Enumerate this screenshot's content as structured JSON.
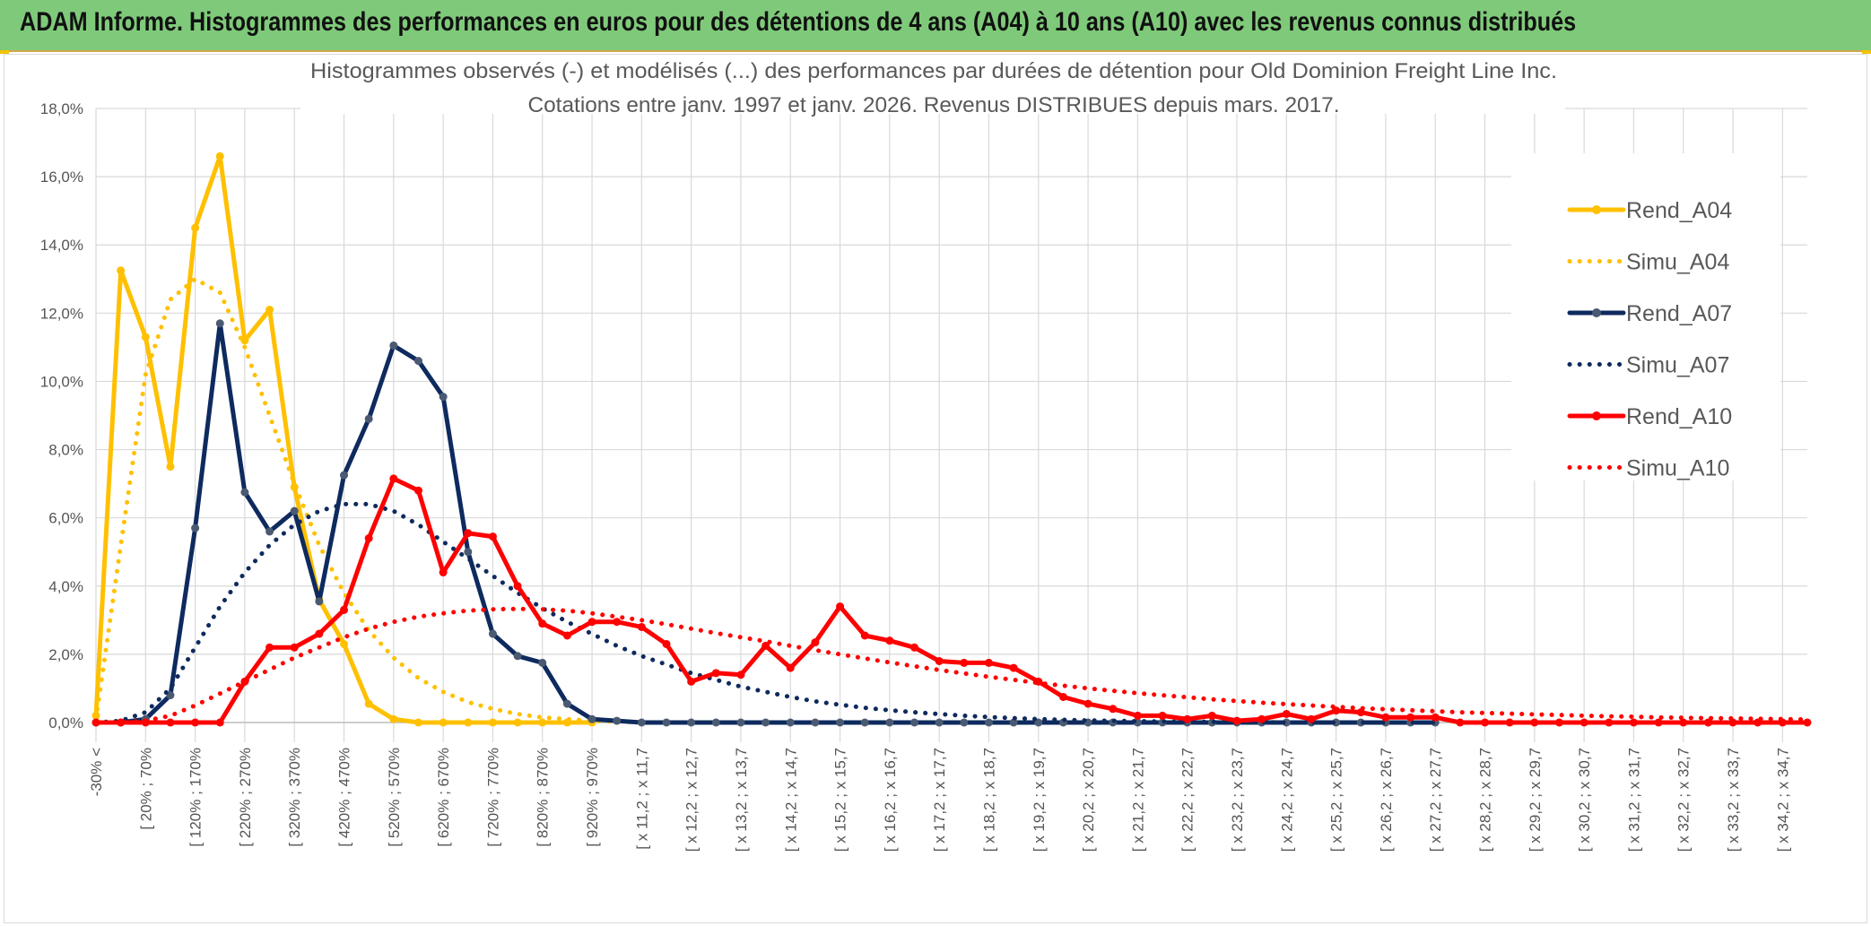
{
  "banner": {
    "title": "ADAM Informe. Histogrammes des performances en euros pour des détentions de 4 ans (A04) à 10 ans (A10) avec les revenus connus distribués"
  },
  "colors": {
    "banner_bg": "#7fca7a",
    "a04": "#ffc000",
    "a07": "#0e2a5e",
    "a07_marker": "#4a5a72",
    "a10": "#ff0000",
    "grid": "#d9d9d9"
  },
  "chart_data": {
    "type": "line",
    "title": "Histogrammes observés (-) et modélisés (...) des performances par durées de détention pour Old Dominion Freight Line Inc.",
    "subtitle": "Cotations entre janv. 1997 et janv. 2026. Revenus DISTRIBUES depuis mars. 2017.",
    "xlabel": "",
    "ylabel": "",
    "ylim": [
      0,
      18
    ],
    "y_ticks": [
      "0,0%",
      "2,0%",
      "4,0%",
      "6,0%",
      "8,0%",
      "10,0%",
      "12,0%",
      "14,0%",
      "16,0%",
      "18,0%"
    ],
    "y_tick_values": [
      0,
      2,
      4,
      6,
      8,
      10,
      12,
      14,
      16,
      18
    ],
    "point_count": 70,
    "category_labels": [
      {
        "index": 0,
        "label": "-30% <"
      },
      {
        "index": 2,
        "label": "[ 20% ; 70%"
      },
      {
        "index": 4,
        "label": "[ 120% ; 170%"
      },
      {
        "index": 6,
        "label": "[ 220% ; 270%"
      },
      {
        "index": 8,
        "label": "[ 320% ; 370%"
      },
      {
        "index": 10,
        "label": "[ 420% ; 470%"
      },
      {
        "index": 12,
        "label": "[ 520% ; 570%"
      },
      {
        "index": 14,
        "label": "[ 620% ; 670%"
      },
      {
        "index": 16,
        "label": "[ 720% ; 770%"
      },
      {
        "index": 18,
        "label": "[ 820% ; 870%"
      },
      {
        "index": 20,
        "label": "[ 920% ; 970%"
      },
      {
        "index": 22,
        "label": "[ x 11,2 ; x 11,7"
      },
      {
        "index": 24,
        "label": "[ x 12,2 ; x 12,7"
      },
      {
        "index": 26,
        "label": "[ x 13,2 ; x 13,7"
      },
      {
        "index": 28,
        "label": "[ x 14,2 ; x 14,7"
      },
      {
        "index": 30,
        "label": "[ x 15,2 ; x 15,7"
      },
      {
        "index": 32,
        "label": "[ x 16,2 ; x 16,7"
      },
      {
        "index": 34,
        "label": "[ x 17,2 ; x 17,7"
      },
      {
        "index": 36,
        "label": "[ x 18,2 ; x 18,7"
      },
      {
        "index": 38,
        "label": "[ x 19,2 ; x 19,7"
      },
      {
        "index": 40,
        "label": "[ x 20,2 ; x 20,7"
      },
      {
        "index": 42,
        "label": "[ x 21,2 ; x 21,7"
      },
      {
        "index": 44,
        "label": "[ x 22,2 ; x 22,7"
      },
      {
        "index": 46,
        "label": "[ x 23,2 ; x 23,7"
      },
      {
        "index": 48,
        "label": "[ x 24,2 ; x 24,7"
      },
      {
        "index": 50,
        "label": "[ x 25,2 ; x 25,7"
      },
      {
        "index": 52,
        "label": "[ x 26,2 ; x 26,7"
      },
      {
        "index": 54,
        "label": "[ x 27,2 ; x 27,7"
      },
      {
        "index": 56,
        "label": "[ x 28,2 ; x 28,7"
      },
      {
        "index": 58,
        "label": "[ x 29,2 ; x 29,7"
      },
      {
        "index": 60,
        "label": "[ x 30,2 ; x 30,7"
      },
      {
        "index": 62,
        "label": "[ x 31,2 ; x 31,7"
      },
      {
        "index": 64,
        "label": "[ x 32,2 ; x 32,7"
      },
      {
        "index": 66,
        "label": "[ x 33,2 ; x 33,7"
      },
      {
        "index": 68,
        "label": "[ x 34,2 ; x 34,7"
      }
    ],
    "legend_position": "right",
    "series": [
      {
        "name": "Rend_A04",
        "style": "solid",
        "color": "#ffc000",
        "values": [
          0.2,
          13.25,
          11.3,
          7.5,
          14.5,
          16.6,
          11.2,
          12.1,
          6.9,
          3.6,
          2.3,
          0.55,
          0.1,
          0,
          0,
          0,
          0,
          0,
          0,
          0,
          0
        ]
      },
      {
        "name": "Simu_A04",
        "style": "dotted",
        "color": "#ffc000",
        "values": [
          0.1,
          5.2,
          10.2,
          12.4,
          13.0,
          12.6,
          11.0,
          9.0,
          7.0,
          5.2,
          3.8,
          2.7,
          1.9,
          1.3,
          0.9,
          0.6,
          0.4,
          0.25,
          0.15,
          0.1,
          0.05,
          0.02,
          0.01,
          0
        ]
      },
      {
        "name": "Rend_A07",
        "style": "solid",
        "color": "#0e2a5e",
        "values": [
          0,
          0,
          0.1,
          0.8,
          5.7,
          11.7,
          6.75,
          5.6,
          6.2,
          3.55,
          7.25,
          8.9,
          11.05,
          10.6,
          9.55,
          5.0,
          2.6,
          1.95,
          1.75,
          0.55,
          0.1,
          0.05,
          0,
          0,
          0,
          0,
          0,
          0,
          0,
          0,
          0,
          0,
          0,
          0,
          0,
          0,
          0,
          0,
          0,
          0,
          0,
          0,
          0,
          0,
          0,
          0,
          0,
          0,
          0,
          0,
          0,
          0,
          0,
          0,
          0
        ]
      },
      {
        "name": "Simu_A07",
        "style": "dotted",
        "color": "#0e2a5e",
        "values": [
          0,
          0.05,
          0.3,
          1.0,
          2.2,
          3.4,
          4.4,
          5.2,
          5.8,
          6.2,
          6.4,
          6.4,
          6.2,
          5.8,
          5.3,
          4.8,
          4.3,
          3.8,
          3.35,
          2.95,
          2.6,
          2.25,
          1.95,
          1.7,
          1.45,
          1.25,
          1.05,
          0.9,
          0.75,
          0.62,
          0.52,
          0.43,
          0.36,
          0.3,
          0.25,
          0.2,
          0.16,
          0.13,
          0.1,
          0.08,
          0.06,
          0.05,
          0.04,
          0.03,
          0.02,
          0.02,
          0.01,
          0.01,
          0,
          0,
          0,
          0,
          0,
          0,
          0
        ]
      },
      {
        "name": "Rend_A10",
        "style": "solid",
        "color": "#ff0000",
        "values": [
          0,
          0,
          0,
          0,
          0,
          0,
          1.2,
          2.2,
          2.2,
          2.6,
          3.3,
          5.4,
          7.15,
          6.8,
          4.4,
          5.55,
          5.45,
          4.0,
          2.9,
          2.55,
          2.95,
          2.95,
          2.8,
          2.3,
          1.2,
          1.45,
          1.4,
          2.25,
          1.6,
          2.35,
          3.4,
          2.55,
          2.4,
          2.2,
          1.8,
          1.75,
          1.75,
          1.6,
          1.2,
          0.75,
          0.55,
          0.4,
          0.2,
          0.2,
          0.1,
          0.2,
          0.05,
          0.1,
          0.25,
          0.1,
          0.35,
          0.3,
          0.15,
          0.15,
          0.15,
          0,
          0,
          0,
          0,
          0,
          0,
          0,
          0,
          0,
          0,
          0,
          0,
          0,
          0,
          0
        ]
      },
      {
        "name": "Simu_A10",
        "style": "dotted",
        "color": "#ff0000",
        "values": [
          0,
          0,
          0.05,
          0.2,
          0.5,
          0.85,
          1.2,
          1.55,
          1.9,
          2.2,
          2.5,
          2.75,
          2.95,
          3.1,
          3.2,
          3.28,
          3.32,
          3.33,
          3.32,
          3.28,
          3.2,
          3.1,
          3.0,
          2.88,
          2.75,
          2.62,
          2.5,
          2.38,
          2.25,
          2.12,
          2.0,
          1.88,
          1.76,
          1.65,
          1.54,
          1.44,
          1.34,
          1.25,
          1.16,
          1.08,
          1.0,
          0.93,
          0.86,
          0.8,
          0.74,
          0.68,
          0.63,
          0.58,
          0.54,
          0.5,
          0.46,
          0.42,
          0.39,
          0.36,
          0.33,
          0.3,
          0.28,
          0.26,
          0.24,
          0.22,
          0.2,
          0.18,
          0.17,
          0.15,
          0.14,
          0.13,
          0.12,
          0.11,
          0.1,
          0.09
        ]
      }
    ]
  }
}
